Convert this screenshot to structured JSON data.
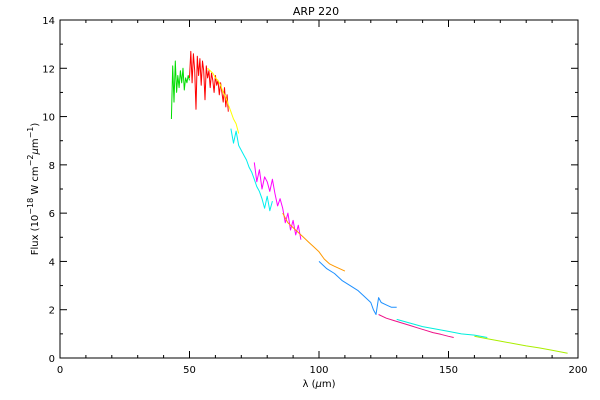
{
  "chart_data": {
    "type": "line",
    "title": "ARP 220",
    "xlabel_prefix": "λ (",
    "xlabel_unit_greek": "μ",
    "xlabel_suffix": "m)",
    "ylabel_prefix": "Flux (10",
    "ylabel_exp1": "−18",
    "ylabel_mid": " W cm",
    "ylabel_exp2": "−2",
    "ylabel_mu": "μ",
    "ylabel_m": "m",
    "ylabel_exp3": "−1",
    "ylabel_close": ")",
    "xlim": [
      0,
      200
    ],
    "ylim": [
      0,
      14
    ],
    "xticks": [
      0,
      50,
      100,
      150,
      200
    ],
    "yticks": [
      0,
      2,
      4,
      6,
      8,
      10,
      12,
      14
    ],
    "xminor_step": 10,
    "yminor_step": 1,
    "grid": false,
    "legend": "none",
    "series": [
      {
        "color": "#00dd00",
        "x": [
          43.0,
          43.5,
          44.0,
          44.5,
          45.0,
          45.5,
          46.0,
          46.5,
          47.0,
          47.5,
          48.0,
          48.5,
          49.0,
          49.5,
          50.0
        ],
        "y": [
          9.9,
          12.1,
          10.6,
          12.3,
          11.0,
          11.7,
          11.2,
          11.9,
          11.4,
          12.0,
          11.1,
          11.6,
          11.4,
          11.7,
          11.5
        ]
      },
      {
        "color": "#ff0000",
        "x": [
          50.0,
          50.5,
          51.0,
          51.5,
          52.0,
          52.5,
          53.0,
          53.5,
          54.0,
          54.5,
          55.0,
          55.5,
          56.0,
          56.5,
          57.0,
          57.5,
          58.0,
          58.5,
          59.0,
          59.5,
          60.0,
          60.5,
          61.0,
          61.5,
          62.0,
          62.5,
          63.0,
          63.5,
          64.0,
          64.5,
          65.0
        ],
        "y": [
          11.6,
          12.7,
          11.4,
          12.6,
          11.9,
          10.3,
          12.5,
          11.7,
          12.4,
          11.3,
          12.3,
          11.9,
          10.7,
          12.1,
          11.6,
          11.9,
          11.2,
          11.8,
          11.5,
          11.0,
          11.7,
          11.3,
          11.5,
          10.9,
          11.4,
          11.0,
          10.6,
          11.2,
          10.4,
          10.9,
          10.2
        ]
      },
      {
        "color": "#ffff00",
        "x": [
          57.0,
          58.0,
          59.0,
          60.0,
          61.0,
          62.0,
          63.0,
          64.0,
          65.0,
          66.0,
          67.0,
          68.0,
          69.0
        ],
        "y": [
          12.0,
          11.9,
          11.8,
          11.6,
          11.5,
          11.3,
          11.0,
          10.8,
          10.5,
          10.2,
          9.9,
          9.7,
          9.3
        ]
      },
      {
        "color": "#00eeee",
        "x": [
          66.0,
          67.0,
          68.0,
          69.0,
          70.0,
          71.0,
          72.0,
          73.0,
          74.0,
          75.0,
          76.0,
          77.0,
          78.0,
          79.0,
          80.0,
          81.0,
          82.0
        ],
        "y": [
          9.5,
          8.9,
          9.4,
          8.8,
          8.6,
          8.4,
          8.2,
          7.9,
          7.7,
          7.4,
          7.1,
          6.9,
          6.6,
          6.2,
          6.7,
          6.1,
          6.5
        ]
      },
      {
        "color": "#ff00ff",
        "x": [
          75.0,
          76.0,
          77.0,
          78.0,
          79.0,
          80.0,
          81.0,
          82.0,
          83.0,
          84.0,
          85.0,
          86.0,
          87.0,
          88.0,
          89.0,
          90.0,
          91.0,
          92.0,
          93.0
        ],
        "y": [
          8.1,
          7.3,
          7.8,
          7.0,
          7.5,
          7.3,
          6.9,
          7.4,
          6.8,
          6.3,
          6.6,
          6.2,
          5.6,
          6.0,
          5.3,
          5.7,
          5.1,
          5.5,
          4.9
        ]
      },
      {
        "color": "#ff9900",
        "x": [
          86.0,
          88.0,
          90.0,
          92.0,
          94.0,
          96.0,
          98.0,
          100.0,
          102.0,
          104.0,
          106.0,
          108.0,
          110.0
        ],
        "y": [
          6.0,
          5.6,
          5.4,
          5.2,
          5.0,
          4.8,
          4.6,
          4.4,
          4.1,
          3.9,
          3.8,
          3.7,
          3.6
        ]
      },
      {
        "color": "#1e90ff",
        "x": [
          100.0,
          103.0,
          106.0,
          109.0,
          112.0,
          115.0,
          118.0,
          120.0,
          121.0,
          122.0,
          123.0,
          124.0,
          126.0,
          128.0,
          130.0
        ],
        "y": [
          4.0,
          3.7,
          3.5,
          3.2,
          3.0,
          2.8,
          2.5,
          2.3,
          2.0,
          1.8,
          2.5,
          2.3,
          2.2,
          2.1,
          2.1
        ]
      },
      {
        "color": "#ee1188",
        "x": [
          123.0,
          126.0,
          129.0,
          132.0,
          135.0,
          138.0,
          141.0,
          144.0,
          147.0,
          150.0,
          152.0
        ],
        "y": [
          1.8,
          1.65,
          1.55,
          1.45,
          1.35,
          1.25,
          1.15,
          1.05,
          0.98,
          0.9,
          0.85
        ]
      },
      {
        "color": "#00eedd",
        "x": [
          130.0,
          135.0,
          140.0,
          145.0,
          150.0,
          155.0,
          160.0,
          165.0
        ],
        "y": [
          1.6,
          1.45,
          1.3,
          1.2,
          1.1,
          1.0,
          0.95,
          0.85
        ]
      },
      {
        "color": "#aaee00",
        "x": [
          160.0,
          165.0,
          170.0,
          175.0,
          180.0,
          185.0,
          190.0,
          193.0,
          196.0
        ],
        "y": [
          0.9,
          0.8,
          0.7,
          0.6,
          0.5,
          0.42,
          0.32,
          0.26,
          0.2
        ]
      }
    ]
  }
}
